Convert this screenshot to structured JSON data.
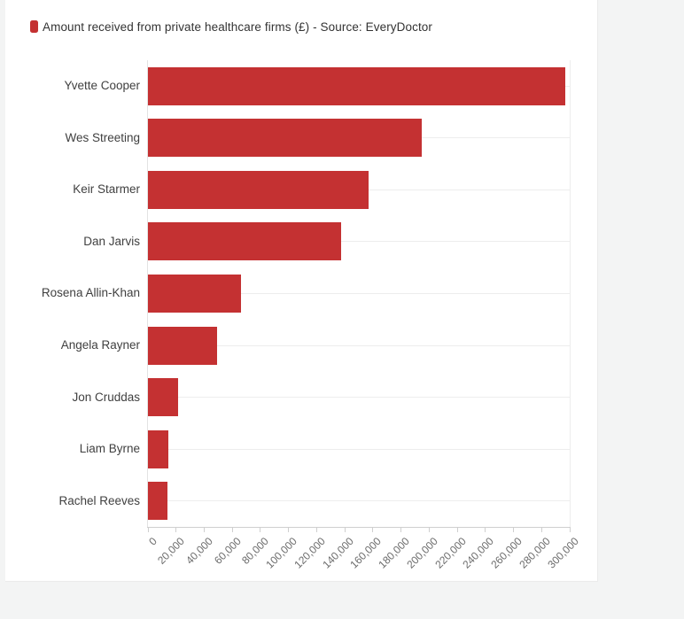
{
  "page": {
    "background_color": "#f3f4f4",
    "card_background_color": "#ffffff"
  },
  "legend": {
    "label": "Amount received from private healthcare firms (£) - Source: EveryDoctor",
    "swatch_color": "#c43132"
  },
  "chart_data": {
    "type": "bar",
    "orientation": "horizontal",
    "title": "",
    "series_label": "Amount received from private healthcare firms (£) - Source: EveryDoctor",
    "categories": [
      "Yvette Cooper",
      "Wes Streeting",
      "Keir Starmer",
      "Dan Jarvis",
      "Rosena Allin-Khan",
      "Angela Rayner",
      "Jon Cruddas",
      "Liam Byrne",
      "Rachel Reeves"
    ],
    "values": [
      297000,
      195000,
      157500,
      138000,
      66500,
      49500,
      22000,
      14500,
      14000
    ],
    "xlabel": "",
    "ylabel": "",
    "xlim": [
      0,
      300000
    ],
    "x_ticks": [
      0,
      20000,
      40000,
      60000,
      80000,
      100000,
      120000,
      140000,
      160000,
      180000,
      200000,
      220000,
      240000,
      260000,
      280000,
      300000
    ],
    "x_tick_labels": [
      "0",
      "20,000",
      "40,000",
      "60,000",
      "80,000",
      "100,000",
      "120,000",
      "140,000",
      "160,000",
      "180,000",
      "200,000",
      "220,000",
      "240,000",
      "260,000",
      "280,000",
      "300,000"
    ],
    "x_tick_label_rotation_deg": -45,
    "bar_color": "#c43132",
    "grid": "horizontal row lines",
    "legend_position": "top-left"
  },
  "colors": {
    "accent": "#c43132",
    "gridline": "#ededed",
    "axis_line": "#cfcfcf",
    "category_label_text": "#404040",
    "tick_label_text": "#6b6b6b",
    "legend_text": "#333333"
  }
}
